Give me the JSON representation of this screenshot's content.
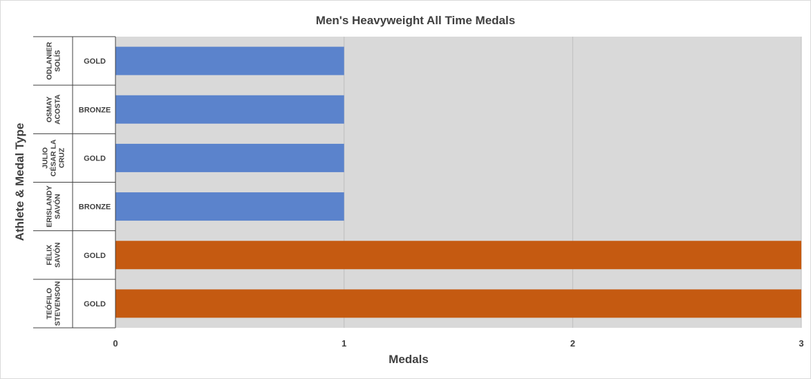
{
  "chart_data": {
    "type": "bar",
    "orientation": "horizontal",
    "title": "Men's Heavyweight All Time Medals",
    "xlabel": "Medals",
    "ylabel": "Athlete & Medal Type",
    "xlim": [
      0,
      3
    ],
    "xticks": [
      "0",
      "1",
      "2",
      "3"
    ],
    "grid": true,
    "legend": "none",
    "categories": [
      {
        "athlete": [
          "ODLANIER",
          "SOLÍS"
        ],
        "medal": "GOLD",
        "value": 1,
        "color": "#5b83cc"
      },
      {
        "athlete": [
          "OSMAY",
          "ACOSTA"
        ],
        "medal": "BRONZE",
        "value": 1,
        "color": "#5b83cc"
      },
      {
        "athlete": [
          "JULIO",
          "CÉSAR LA",
          "CRUZ"
        ],
        "medal": "GOLD",
        "value": 1,
        "color": "#5b83cc"
      },
      {
        "athlete": [
          "ERISLANDY",
          "SAVÓN"
        ],
        "medal": "BRONZE",
        "value": 1,
        "color": "#5b83cc"
      },
      {
        "athlete": [
          "FÉLIX",
          "SAVÓN"
        ],
        "medal": "GOLD",
        "value": 3,
        "color": "#c55a11"
      },
      {
        "athlete": [
          "TEÓFILO",
          "STEVENSON"
        ],
        "medal": "GOLD",
        "value": 3,
        "color": "#c55a11"
      }
    ]
  },
  "colors": {
    "plot_background": "#d9d9d9",
    "gridline": "#bfbfbf",
    "axis_line": "#404040",
    "text": "#404040"
  }
}
